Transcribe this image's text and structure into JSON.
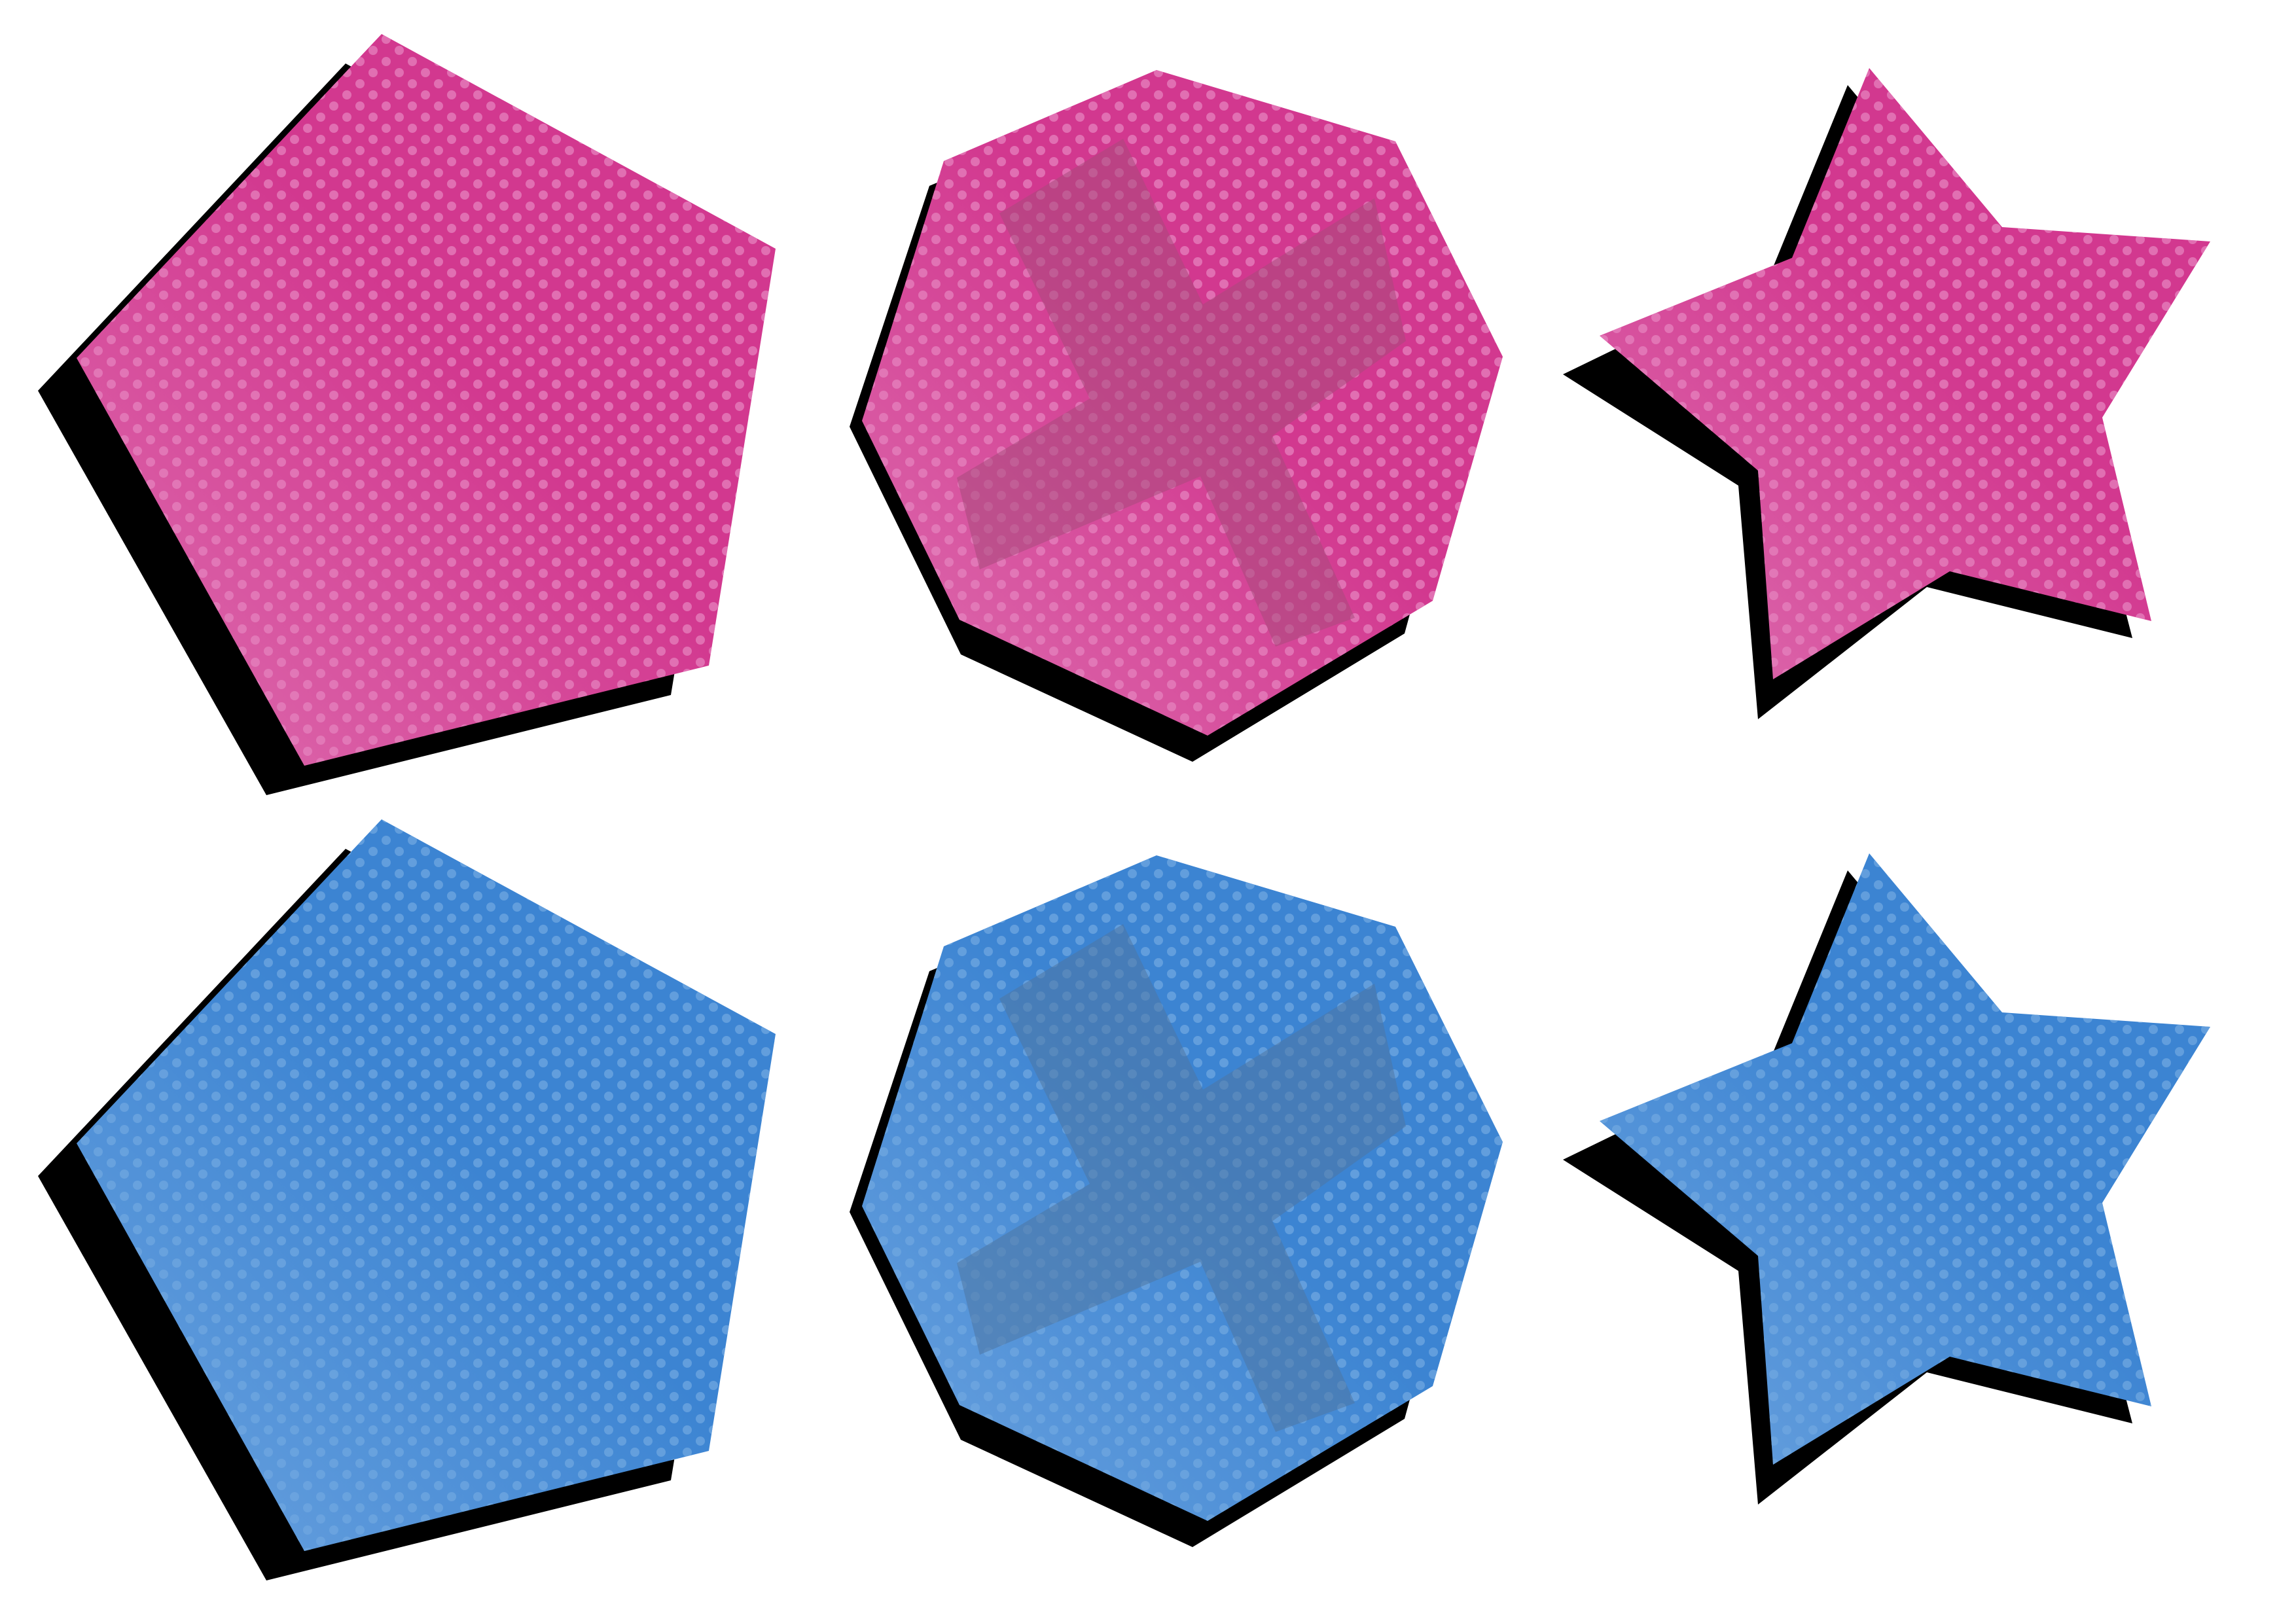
{
  "colors": {
    "background": "#ffffff",
    "shadow": "#000000",
    "pink": {
      "dark": "#d2388f",
      "light": "#dd6fb0",
      "dot": "#e581bd",
      "cross": "#a84a7c"
    },
    "blue": {
      "dark": "#3c84d2",
      "light": "#6ca3df",
      "dot": "#6fa7e0",
      "cross": "#4f77a3"
    }
  },
  "rows": [
    {
      "color": "pink",
      "shapes": [
        {
          "kind": "pentagon",
          "pattern": "halftone"
        },
        {
          "kind": "heptagon",
          "pattern": "halftone",
          "overlay": "cross"
        },
        {
          "kind": "star",
          "pattern": "halftone"
        }
      ]
    },
    {
      "color": "blue",
      "shapes": [
        {
          "kind": "pentagon",
          "pattern": "halftone"
        },
        {
          "kind": "heptagon",
          "pattern": "halftone",
          "overlay": "cross"
        },
        {
          "kind": "star",
          "pattern": "halftone"
        }
      ]
    }
  ]
}
